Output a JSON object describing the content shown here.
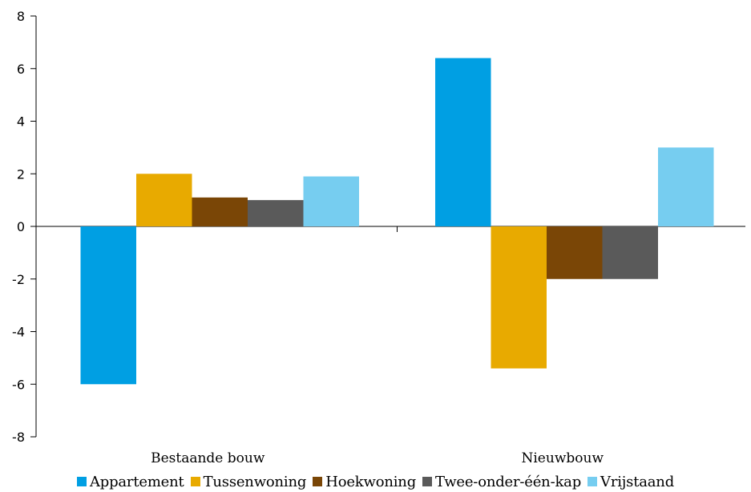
{
  "chart_data": {
    "type": "bar",
    "title": "",
    "xlabel": "",
    "ylabel": "",
    "categories": [
      "Bestaande bouw",
      "Nieuwbouw"
    ],
    "ylim": [
      -8,
      8
    ],
    "yticks": [
      8,
      6,
      4,
      2,
      0,
      -2,
      -4,
      -6,
      -8
    ],
    "ytick_labels": [
      "8",
      "6",
      "4",
      "2",
      "0",
      "-2",
      "-4",
      "-6",
      "-8"
    ],
    "grid": false,
    "legend_position": "bottom",
    "series": [
      {
        "name": "Appartement",
        "values": [
          -6.0,
          6.4
        ],
        "color": "#009FE3"
      },
      {
        "name": "Tussenwoning",
        "values": [
          2.0,
          -5.4
        ],
        "color": "#E8AA00"
      },
      {
        "name": "Hoekwoning",
        "values": [
          1.1,
          -2.0
        ],
        "color": "#7A4606"
      },
      {
        "name": "Twee-onder-één-kap",
        "values": [
          1.0,
          -2.0
        ],
        "color": "#5A5A5A"
      },
      {
        "name": "Vrijstaand",
        "values": [
          1.9,
          3.0
        ],
        "color": "#76CDF0"
      }
    ]
  }
}
